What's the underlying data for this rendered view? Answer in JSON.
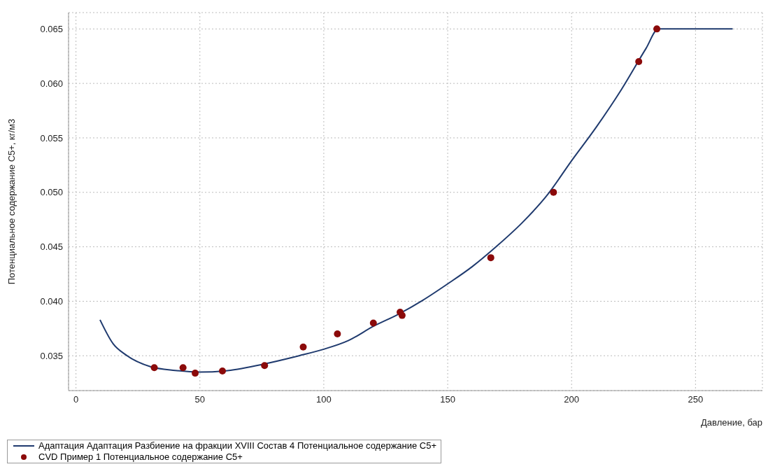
{
  "chart_data": {
    "type": "line",
    "xlabel": "Давление, бар",
    "ylabel": "Потенциальное содержание C5+, кг/м3",
    "xlim": [
      -3,
      277
    ],
    "xticks": [
      0,
      50,
      100,
      150,
      200,
      250
    ],
    "ylim": [
      0.0318,
      0.0665
    ],
    "yticks": [
      0.035,
      {
        "value": 0.04,
        "label": "0.040"
      },
      0.045,
      {
        "value": 0.05,
        "label": "0.050"
      },
      0.055,
      {
        "value": 0.06,
        "label": "0.060"
      },
      0.065
    ],
    "grid": true,
    "legend": "bottom left",
    "series": [
      {
        "name": "Адаптация Адаптация Разбиение на фракции XVIII Состав 4 Потенциальное содержание C5+",
        "marker": "none",
        "color": "#1f3a6e",
        "x": [
          9.7,
          15,
          20,
          30,
          40,
          50,
          60,
          75,
          90,
          100,
          110,
          120,
          130,
          140,
          150,
          160,
          170,
          180,
          190,
          200,
          210,
          220,
          230,
          235,
          265
        ],
        "values": [
          0.0383,
          0.0361,
          0.0351,
          0.034,
          0.03365,
          0.0335,
          0.0336,
          0.0342,
          0.035,
          0.0356,
          0.0364,
          0.0377,
          0.0388,
          0.0401,
          0.0416,
          0.0432,
          0.0451,
          0.0472,
          0.0497,
          0.0529,
          0.056,
          0.0594,
          0.0632,
          0.065,
          0.065
        ]
      },
      {
        "name": "CVD Пример 1 Потенциальное содержание C5+",
        "type": "scatter",
        "marker": "circle",
        "color": "#8b0a0a",
        "x": [
          31.6,
          43.2,
          48.1,
          59.1,
          76.1,
          91.7,
          105.5,
          120.0,
          130.8,
          131.6,
          167.4,
          192.7,
          227.1,
          234.4
        ],
        "values": [
          0.0339,
          0.0339,
          0.0334,
          0.0336,
          0.0341,
          0.0358,
          0.037,
          0.038,
          0.039,
          0.0387,
          0.044,
          0.05,
          0.062,
          0.065
        ]
      }
    ]
  }
}
